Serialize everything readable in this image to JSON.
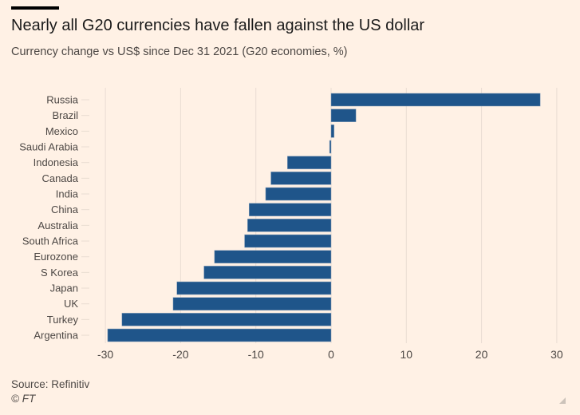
{
  "title": "Nearly all G20 currencies have fallen against the US dollar",
  "subtitle": "Currency change vs US$ since Dec 31 2021 (G20 economies, %)",
  "source": "Source: Refinitiv",
  "copyright": "© FT",
  "colors": {
    "bar": "#1f558a",
    "background": "#fff1e5",
    "grid": "#e9ddd2"
  },
  "chart_data": {
    "type": "bar",
    "orientation": "horizontal",
    "title": "Nearly all G20 currencies have fallen against the US dollar",
    "subtitle": "Currency change vs US$ since Dec 31 2021 (G20 economies, %)",
    "xlabel": "",
    "ylabel": "",
    "categories": [
      "Russia",
      "Brazil",
      "Mexico",
      "Saudi Arabia",
      "Indonesia",
      "Canada",
      "India",
      "China",
      "Australia",
      "South Africa",
      "Eurozone",
      "S Korea",
      "Japan",
      "UK",
      "Turkey",
      "Argentina"
    ],
    "values": [
      27.8,
      3.3,
      0.4,
      -0.2,
      -5.8,
      -8.0,
      -8.7,
      -10.9,
      -11.1,
      -11.5,
      -15.5,
      -16.9,
      -20.5,
      -21.0,
      -27.8,
      -29.7
    ],
    "xlim": [
      -30,
      30
    ],
    "xticks": [
      -30,
      -20,
      -10,
      0,
      10,
      20,
      30
    ],
    "xtick_labels": [
      "-30",
      "-20",
      "-10",
      "0",
      "10",
      "20",
      "30"
    ],
    "grid": true
  }
}
